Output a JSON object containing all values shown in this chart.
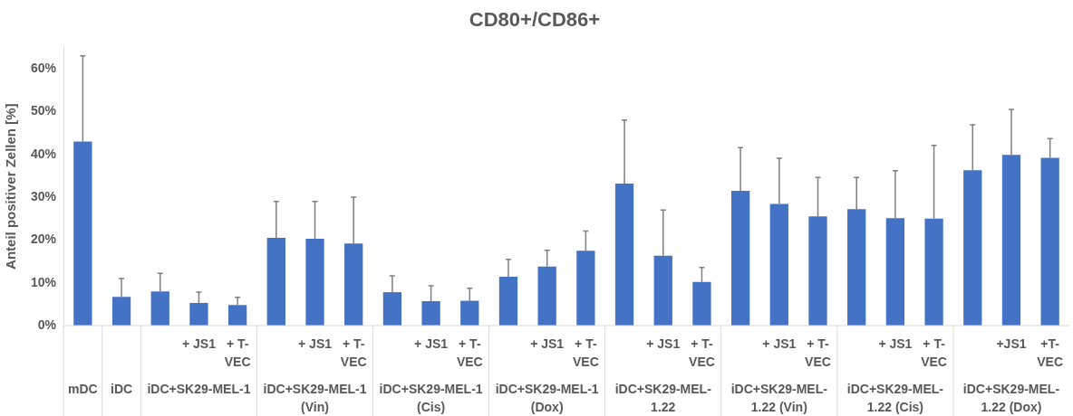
{
  "chart_data": {
    "type": "bar",
    "title": "CD80+/CD86+",
    "ylabel": "Anteil positiver Zellen [%]",
    "categories": [
      null,
      null,
      null,
      "+ JS1",
      "+ T-VEC",
      null,
      "+ JS1",
      "+ T-VEC",
      null,
      "+ JS1",
      "+ T-VEC",
      null,
      "+ JS1",
      "+ T-VEC",
      null,
      "+ JS1",
      "+ T-VEC",
      null,
      "+ JS1",
      "+ T-VEC",
      null,
      "+ JS1",
      "+ T-VEC",
      null,
      "+JS1",
      "+T-VEC"
    ],
    "values": [
      43,
      6.7,
      8.0,
      5.3,
      4.8,
      20.5,
      20.3,
      19.2,
      7.8,
      5.7,
      5.8,
      11.4,
      13.8,
      17.5,
      33.2,
      16.3,
      10.2,
      31.5,
      28.4,
      25.5,
      27.2,
      25.1,
      25.0,
      36.3,
      39.9,
      39.2
    ],
    "errors": [
      [
        43,
        63
      ],
      [
        6.7,
        11
      ],
      [
        8.0,
        12.2
      ],
      [
        5.3,
        7.8
      ],
      [
        4.8,
        6.6
      ],
      [
        20.5,
        29
      ],
      [
        20.3,
        29
      ],
      [
        19.2,
        30
      ],
      [
        7.8,
        11.6
      ],
      [
        5.7,
        9.3
      ],
      [
        5.8,
        8.7
      ],
      [
        11.4,
        15.5
      ],
      [
        13.8,
        17.6
      ],
      [
        17.5,
        22.1
      ],
      [
        33.2,
        48
      ],
      [
        16.3,
        27
      ],
      [
        10.2,
        13.6
      ],
      [
        31.5,
        41.6
      ],
      [
        28.4,
        39.1
      ],
      [
        25.5,
        34.6
      ],
      [
        27.2,
        34.6
      ],
      [
        25.1,
        36.2
      ],
      [
        25.0,
        42.1
      ],
      [
        36.3,
        46.9
      ],
      [
        39.9,
        50.5
      ],
      [
        39.2,
        43.7
      ]
    ],
    "color": "#4472c4",
    "ylim": [
      0,
      65
    ],
    "yticks": [
      {
        "value": 0,
        "label": "0%"
      },
      {
        "value": 10,
        "label": "10%"
      },
      {
        "value": 20,
        "label": "20%"
      },
      {
        "value": 30,
        "label": "30%"
      },
      {
        "value": 40,
        "label": "40%"
      },
      {
        "value": 50,
        "label": "50%"
      },
      {
        "value": 60,
        "label": "60%"
      }
    ],
    "grid": false,
    "legend": false,
    "annotations": [
      "mDC",
      "iDC",
      "iDC+SK29-MEL-1",
      "iDC+SK29-MEL-1 (Vin)",
      "iDC+SK29-MEL-1 (Cis)",
      "iDC+SK29-MEL-1 (Dox)",
      "iDC+SK29-MEL-1.22",
      "iDC+SK29-MEL-1.22 (Vin)",
      "iDC+SK29-MEL-1.22 (Cis)",
      "iDC+SK29-MEL-1.22 (Dox)"
    ]
  }
}
